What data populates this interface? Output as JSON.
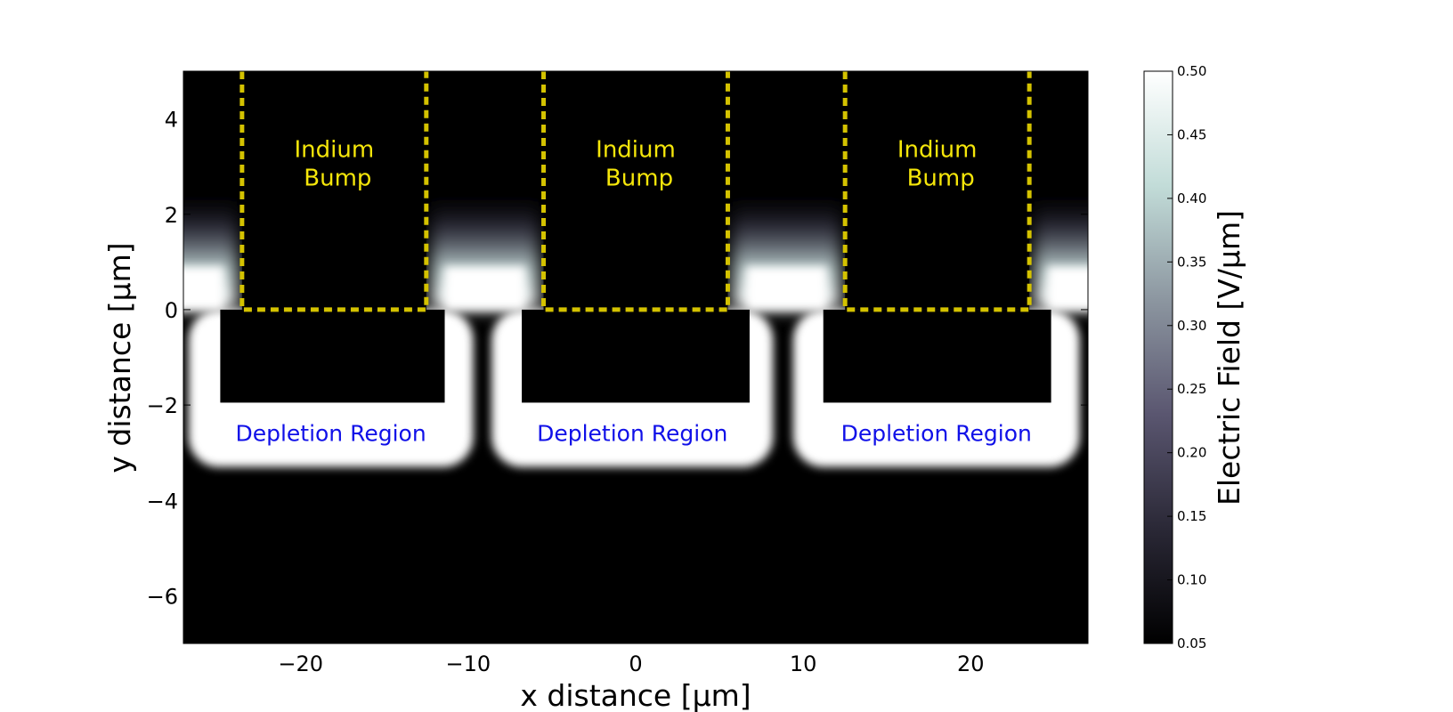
{
  "chart_data": {
    "type": "heatmap",
    "title": "",
    "xlabel": "x distance [μm]",
    "ylabel": "y distance [μm]",
    "xlim": [
      -27,
      27
    ],
    "ylim": [
      -7,
      5
    ],
    "x_ticks": [
      {
        "value": -20,
        "label": "−20"
      },
      {
        "value": -10,
        "label": "−10"
      },
      {
        "value": 0,
        "label": "0"
      },
      {
        "value": 10,
        "label": "10"
      },
      {
        "value": 20,
        "label": "20"
      }
    ],
    "y_ticks": [
      {
        "value": 4,
        "label": "4"
      },
      {
        "value": 2,
        "label": "2"
      },
      {
        "value": 0,
        "label": "0"
      },
      {
        "value": -2,
        "label": "−2"
      },
      {
        "value": -4,
        "label": "−4"
      },
      {
        "value": -6,
        "label": "−6"
      }
    ],
    "colorbar": {
      "label": "Electric Field [V/μm]",
      "range": [
        0.05,
        0.5
      ],
      "ticks": [
        "0.05",
        "0.10",
        "0.15",
        "0.20",
        "0.25",
        "0.30",
        "0.35",
        "0.40",
        "0.45",
        "0.50"
      ],
      "colors": [
        "#000000",
        "#2a2836",
        "#5a5670",
        "#8c96a0",
        "#c2dcd8",
        "#ffffff"
      ]
    },
    "bumps": [
      {
        "x0": -23.5,
        "x1": -12.5,
        "y0": 0,
        "y1": 5,
        "label_line1": "Indium",
        "label_line2": "Bump"
      },
      {
        "x0": -5.5,
        "x1": 5.5,
        "y0": 0,
        "y1": 5,
        "label_line1": "Indium",
        "label_line2": "Bump"
      },
      {
        "x0": 12.5,
        "x1": 23.5,
        "y0": 0,
        "y1": 5,
        "label_line1": "Indium",
        "label_line2": "Bump"
      }
    ],
    "bump_outline_color": "#d4c200",
    "depletion_regions": [
      {
        "x0": -26.7,
        "x1": -9.7,
        "label": "Depletion Region"
      },
      {
        "x0": -8.6,
        "x1": 8.2,
        "label": "Depletion Region"
      },
      {
        "x0": 9.4,
        "x1": 26.5,
        "label": "Depletion Region"
      }
    ],
    "depletion_depth": -3.3,
    "low_field_pockets": [
      {
        "x0": -24.8,
        "x1": -11.4,
        "y0": -1.95,
        "y1": 0
      },
      {
        "x0": -6.8,
        "x1": 6.8,
        "y0": -1.95,
        "y1": 0
      },
      {
        "x0": 11.2,
        "x1": 24.8,
        "y0": -1.95,
        "y1": 0
      }
    ],
    "bright_gaps": [
      -27,
      -9,
      9,
      27
    ],
    "bright_gap_halfwidth": 3.2,
    "bright_gap_height": 2.5,
    "depletion_label_color": "#1010e8",
    "bump_label_color": "#f5e60a"
  }
}
